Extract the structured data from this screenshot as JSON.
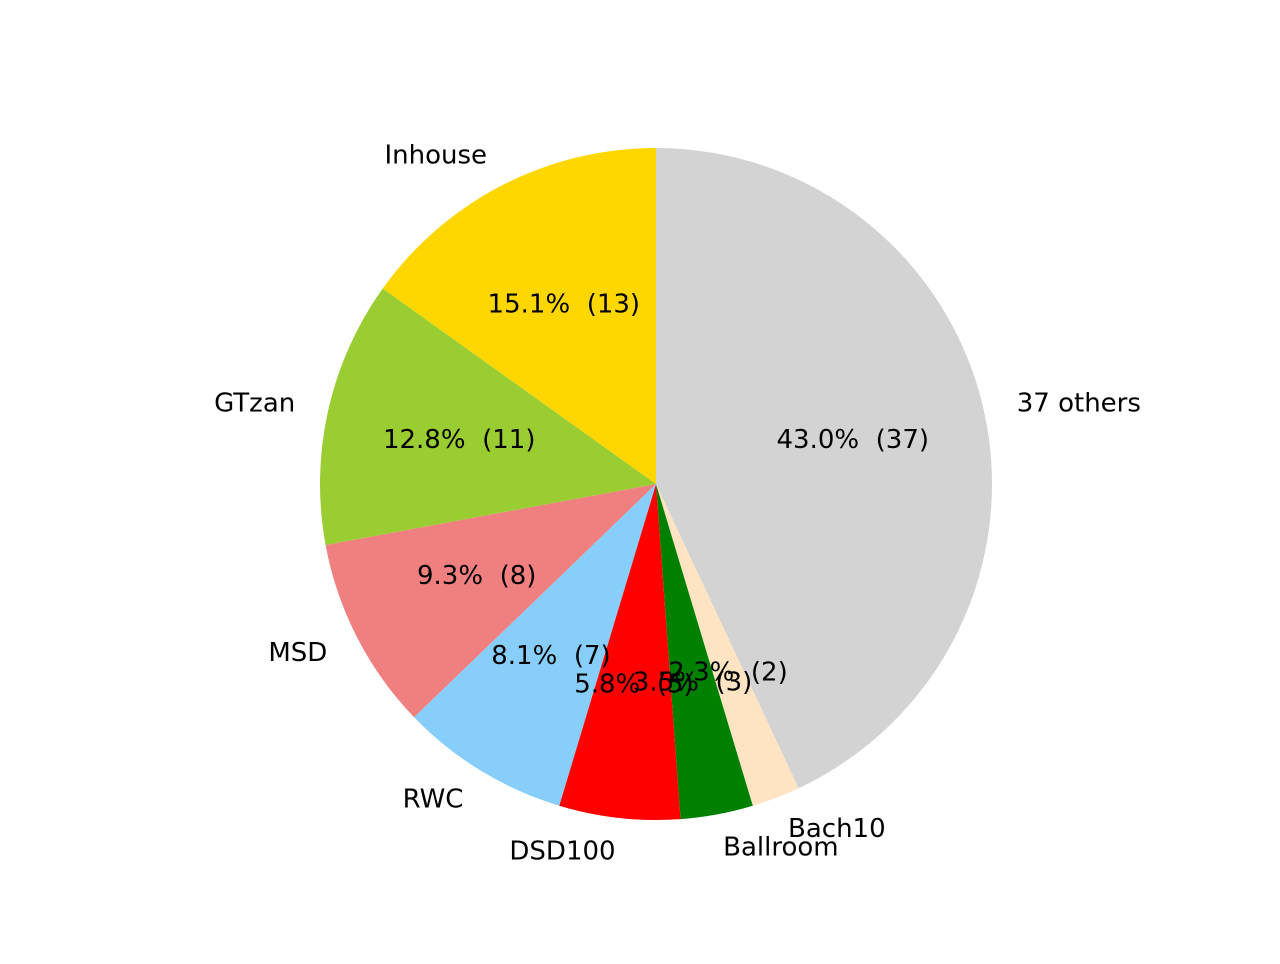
{
  "chart_data": {
    "type": "pie",
    "start_angle_deg": 90,
    "direction": "clockwise",
    "slices": [
      {
        "label": "37 others",
        "value": 37,
        "pct_text": "43.0%",
        "count_text": "(37)",
        "color": "#d3d3d3"
      },
      {
        "label": "Bach10",
        "value": 2,
        "pct_text": "2.3%",
        "count_text": "(2)",
        "color": "#ffe4c4"
      },
      {
        "label": "Ballroom",
        "value": 3,
        "pct_text": "3.5%",
        "count_text": "(3)",
        "color": "#008000"
      },
      {
        "label": "DSD100",
        "value": 5,
        "pct_text": "5.8%",
        "count_text": "(5)",
        "color": "#ff0000"
      },
      {
        "label": "RWC",
        "value": 7,
        "pct_text": "8.1%",
        "count_text": "(7)",
        "color": "#87cefa"
      },
      {
        "label": "MSD",
        "value": 8,
        "pct_text": "9.3%",
        "count_text": "(8)",
        "color": "#f08080"
      },
      {
        "label": "GTzan",
        "value": 11,
        "pct_text": "12.8%",
        "count_text": "(11)",
        "color": "#9acd32"
      },
      {
        "label": "Inhouse",
        "value": 13,
        "pct_text": "15.1%",
        "count_text": "(13)",
        "color": "#ffd700"
      }
    ]
  }
}
